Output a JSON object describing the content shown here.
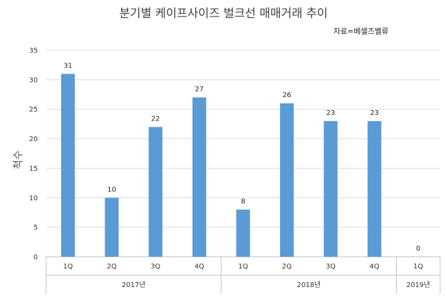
{
  "chart_data": {
    "type": "bar",
    "title": "분기별 케이프사이즈 벌크선 매매거래 추이",
    "source": "자료=베셀즈밸류",
    "ylabel": "척수",
    "xlabel": "",
    "ylim": [
      0,
      35
    ],
    "yticks": [
      0,
      5,
      10,
      15,
      20,
      25,
      30,
      35
    ],
    "categories": [
      "1Q",
      "2Q",
      "3Q",
      "4Q",
      "1Q",
      "2Q",
      "3Q",
      "4Q",
      "1Q"
    ],
    "groups": [
      {
        "label": "2017년",
        "count": 4
      },
      {
        "label": "2018년",
        "count": 4
      },
      {
        "label": "2019년",
        "count": 1
      }
    ],
    "values": [
      31,
      10,
      22,
      27,
      8,
      26,
      23,
      23,
      0
    ],
    "bar_color": "#5b9bd5",
    "grid": true,
    "legend": "none"
  }
}
